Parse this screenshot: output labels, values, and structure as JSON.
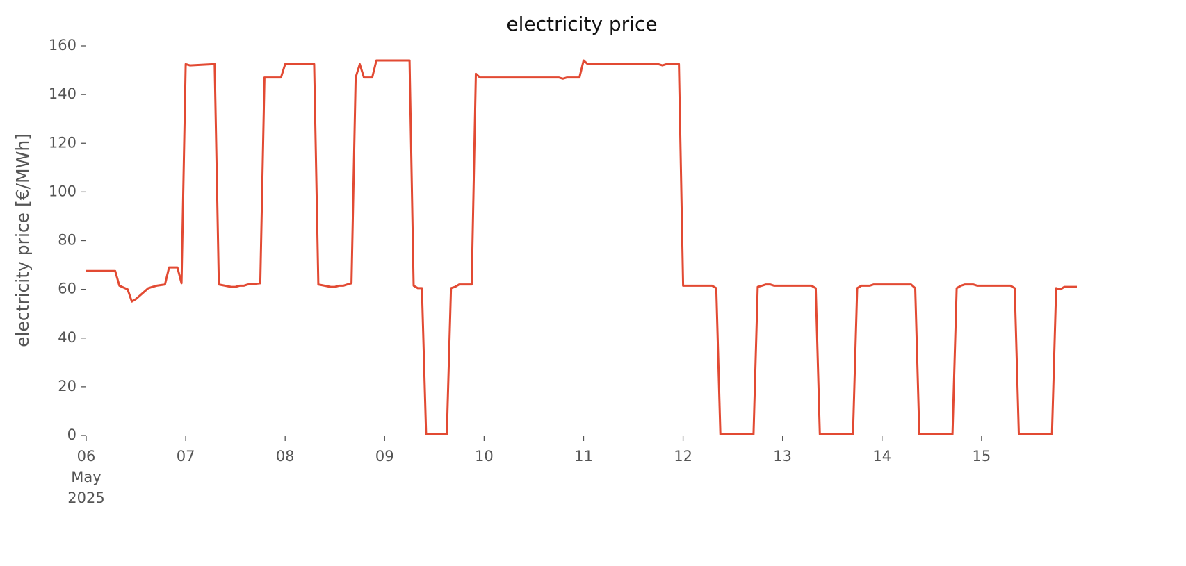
{
  "chart_data": {
    "type": "line",
    "title": "electricity price",
    "y_label": "electricity price [€/MWh]",
    "series": [
      {
        "name": "electricity price",
        "color": "#e24a33",
        "x": [
          "2025-05-06 00:00",
          "2025-05-06 07:00",
          "2025-05-06 08:00",
          "2025-05-06 10:00",
          "2025-05-06 11:00",
          "2025-05-06 12:00",
          "2025-05-06 15:00",
          "2025-05-06 16:00",
          "2025-05-06 17:00",
          "2025-05-06 19:00",
          "2025-05-06 20:00",
          "2025-05-06 22:00",
          "2025-05-06 23:00",
          "2025-05-07 00:00",
          "2025-05-07 01:00",
          "2025-05-07 07:00",
          "2025-05-07 08:00",
          "2025-05-07 11:00",
          "2025-05-07 12:00",
          "2025-05-07 13:00",
          "2025-05-07 14:00",
          "2025-05-07 15:00",
          "2025-05-07 18:00",
          "2025-05-07 19:00",
          "2025-05-07 23:00",
          "2025-05-08 00:00",
          "2025-05-08 07:00",
          "2025-05-08 08:00",
          "2025-05-08 11:00",
          "2025-05-08 12:00",
          "2025-05-08 13:00",
          "2025-05-08 14:00",
          "2025-05-08 15:00",
          "2025-05-08 16:00",
          "2025-05-08 17:00",
          "2025-05-08 18:00",
          "2025-05-08 19:00",
          "2025-05-08 21:00",
          "2025-05-08 22:00",
          "2025-05-09 00:00",
          "2025-05-09 06:00",
          "2025-05-09 07:00",
          "2025-05-09 08:00",
          "2025-05-09 09:00",
          "2025-05-09 10:00",
          "2025-05-09 15:00",
          "2025-05-09 16:00",
          "2025-05-09 17:00",
          "2025-05-09 18:00",
          "2025-05-09 21:00",
          "2025-05-09 22:00",
          "2025-05-09 23:00",
          "2025-05-10 18:00",
          "2025-05-10 19:00",
          "2025-05-10 20:00",
          "2025-05-10 23:00",
          "2025-05-11 00:00",
          "2025-05-11 01:00",
          "2025-05-11 18:00",
          "2025-05-11 19:00",
          "2025-05-11 20:00",
          "2025-05-11 23:00",
          "2025-05-12 00:00",
          "2025-05-12 07:00",
          "2025-05-12 08:00",
          "2025-05-12 09:00",
          "2025-05-12 17:00",
          "2025-05-12 18:00",
          "2025-05-12 19:00",
          "2025-05-12 20:00",
          "2025-05-12 21:00",
          "2025-05-12 22:00",
          "2025-05-13 07:00",
          "2025-05-13 08:00",
          "2025-05-13 09:00",
          "2025-05-13 17:00",
          "2025-05-13 18:00",
          "2025-05-13 19:00",
          "2025-05-13 21:00",
          "2025-05-13 22:00",
          "2025-05-14 07:00",
          "2025-05-14 08:00",
          "2025-05-14 09:00",
          "2025-05-14 17:00",
          "2025-05-14 18:00",
          "2025-05-14 19:00",
          "2025-05-14 20:00",
          "2025-05-14 22:00",
          "2025-05-14 23:00",
          "2025-05-15 07:00",
          "2025-05-15 08:00",
          "2025-05-15 09:00",
          "2025-05-15 17:00",
          "2025-05-15 18:00",
          "2025-05-15 19:00",
          "2025-05-15 20:00",
          "2025-05-15 23:00"
        ],
        "values": [
          67.5,
          67.5,
          61.5,
          60,
          55,
          56,
          60.5,
          61,
          61.5,
          62,
          69,
          69,
          62.5,
          152.5,
          152,
          152.5,
          62,
          61,
          61,
          61.5,
          61.5,
          62,
          62.5,
          147,
          147,
          152.5,
          152.5,
          62,
          61,
          61,
          61.5,
          61.5,
          62,
          62.5,
          147,
          152.5,
          147,
          147,
          154,
          154,
          154,
          61.5,
          60.5,
          60.5,
          0.5,
          0.5,
          60.5,
          61,
          62,
          62,
          148.5,
          147,
          147,
          146.5,
          147,
          147,
          154,
          152.5,
          152.5,
          152,
          152.5,
          152.5,
          61.5,
          61.5,
          60.5,
          0.5,
          0.5,
          61,
          61.5,
          62,
          62,
          61.5,
          61.5,
          60.5,
          0.5,
          0.5,
          60.5,
          61.5,
          61.5,
          62,
          62,
          60.5,
          0.5,
          0.5,
          60.5,
          61.5,
          62,
          62,
          61.5,
          61.5,
          60.5,
          0.5,
          0.5,
          60.5,
          60,
          61,
          61
        ]
      }
    ],
    "xlim": [
      "2025-05-06 00:00",
      "2025-05-15 23:00"
    ],
    "xticks": [
      {
        "value": "2025-05-06 00:00",
        "label": "06\nMay\n2025"
      },
      {
        "value": "2025-05-07 00:00",
        "label": "07"
      },
      {
        "value": "2025-05-08 00:00",
        "label": "08"
      },
      {
        "value": "2025-05-09 00:00",
        "label": "09"
      },
      {
        "value": "2025-05-10 00:00",
        "label": "10"
      },
      {
        "value": "2025-05-11 00:00",
        "label": "11"
      },
      {
        "value": "2025-05-12 00:00",
        "label": "12"
      },
      {
        "value": "2025-05-13 00:00",
        "label": "13"
      },
      {
        "value": "2025-05-14 00:00",
        "label": "14"
      },
      {
        "value": "2025-05-15 00:00",
        "label": "15"
      }
    ],
    "ylim": [
      0,
      160
    ],
    "yticks": [
      0,
      20,
      40,
      60,
      80,
      100,
      120,
      140,
      160
    ],
    "grid": false
  }
}
